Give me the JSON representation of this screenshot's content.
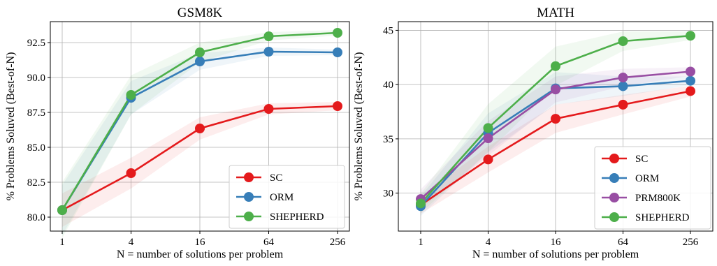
{
  "chart_data": [
    {
      "type": "line",
      "title": "GSM8K",
      "xlabel": "N = number of solutions per problem",
      "ylabel": "% Problems Soluved (Best-of-N)",
      "x": [
        "1",
        "4",
        "16",
        "64",
        "256"
      ],
      "xscale": "log4",
      "ylim": [
        79.0,
        94.0
      ],
      "yticks": [
        "80.0",
        "82.5",
        "85.0",
        "87.5",
        "90.0",
        "92.5"
      ],
      "grid": true,
      "legend_position": "lower-right",
      "series": [
        {
          "name": "SC",
          "color": "#e41a1c",
          "values": [
            80.5,
            83.15,
            86.35,
            87.75,
            87.95
          ],
          "band": [
            1.2,
            1.1,
            0.8,
            0.4,
            0.3
          ]
        },
        {
          "name": "ORM",
          "color": "#377eb8",
          "values": [
            80.5,
            88.55,
            91.15,
            91.85,
            91.8
          ],
          "band": [
            1.8,
            1.2,
            0.6,
            0.3,
            0.2
          ]
        },
        {
          "name": "SHEPHERD",
          "color": "#4daf4a",
          "values": [
            80.5,
            88.75,
            91.8,
            92.95,
            93.2
          ],
          "band": [
            2.0,
            1.4,
            0.7,
            0.3,
            0.2
          ]
        }
      ]
    },
    {
      "type": "line",
      "title": "MATH",
      "xlabel": "N = number of solutions per problem",
      "ylabel": "% Problems Soluved (Best-of-N)",
      "x": [
        "1",
        "4",
        "16",
        "64",
        "256"
      ],
      "xscale": "log4",
      "ylim": [
        26.5,
        45.8
      ],
      "yticks": [
        "30",
        "35",
        "40",
        "45"
      ],
      "grid": true,
      "legend_position": "lower-right",
      "series": [
        {
          "name": "SC",
          "color": "#e41a1c",
          "values": [
            28.9,
            33.1,
            36.85,
            38.15,
            39.4
          ],
          "band": [
            0.8,
            1.2,
            1.3,
            0.9,
            0.5
          ]
        },
        {
          "name": "ORM",
          "color": "#377eb8",
          "values": [
            28.8,
            35.55,
            39.65,
            39.85,
            40.35
          ],
          "band": [
            0.9,
            1.8,
            1.5,
            0.9,
            0.4
          ]
        },
        {
          "name": "PRM800K",
          "color": "#984ea3",
          "values": [
            29.45,
            35.05,
            39.55,
            40.65,
            41.2
          ],
          "band": [
            0.9,
            1.6,
            1.2,
            0.8,
            0.4
          ]
        },
        {
          "name": "SHEPHERD",
          "color": "#4daf4a",
          "values": [
            29.05,
            36.0,
            41.7,
            44.0,
            44.5
          ],
          "band": [
            0.9,
            2.2,
            1.8,
            0.9,
            0.4
          ]
        }
      ]
    }
  ]
}
